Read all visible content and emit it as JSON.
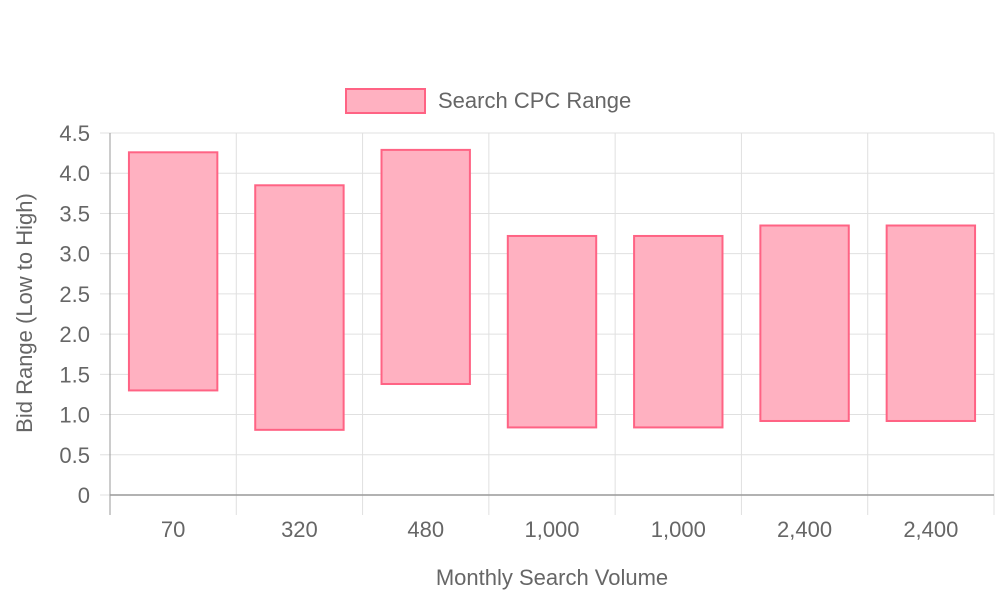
{
  "chart_data": {
    "type": "bar",
    "categories": [
      "70",
      "320",
      "480",
      "1,000",
      "1,000",
      "2,400",
      "2,400"
    ],
    "series": [
      {
        "name": "Search CPC Range",
        "ranges": [
          [
            1.3,
            4.26
          ],
          [
            0.81,
            3.85
          ],
          [
            1.38,
            4.29
          ],
          [
            0.84,
            3.22
          ],
          [
            0.84,
            3.22
          ],
          [
            0.92,
            3.35
          ],
          [
            0.92,
            3.35
          ]
        ]
      }
    ],
    "xlabel": "Monthly Search Volume",
    "ylabel": "Bid Range (Low to High)",
    "ylim": [
      0,
      4.5
    ],
    "yticks": [
      0,
      0.5,
      1.0,
      1.5,
      2.0,
      2.5,
      3.0,
      3.5,
      4.0,
      4.5
    ],
    "ytick_labels": [
      "0",
      "0.5",
      "1.0",
      "1.5",
      "2.0",
      "2.5",
      "3.0",
      "3.5",
      "4.0",
      "4.5"
    ],
    "grid": true,
    "legend_position": "top",
    "colors": {
      "bar_fill": "#ffb1c1",
      "bar_border": "#ff6384",
      "grid": "#e0e0e0",
      "axis": "#999999",
      "text": "#666666"
    }
  }
}
